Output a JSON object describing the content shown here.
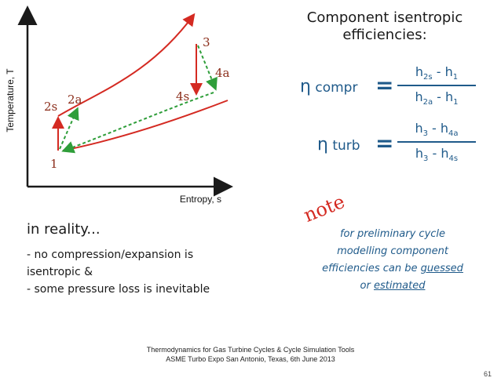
{
  "diagram": {
    "y_axis_label": "Temperature, T",
    "x_axis_label": "Entropy, s",
    "point_labels": [
      "1",
      "2s",
      "2a",
      "3",
      "4s",
      "4a"
    ],
    "colors": {
      "process": "#d42a22",
      "actual": "#2f9e3a",
      "axis": "#1a1a1a"
    }
  },
  "efficiencies": {
    "title_line1": "Component isentropic",
    "title_line2": "efficiencies:",
    "compr": {
      "symbol": "η",
      "label": "compr",
      "equals": "=",
      "num_a": "h",
      "num_a_sub": "2s",
      "num_op": " - ",
      "num_b": "h",
      "num_b_sub": "1",
      "den_a": "h",
      "den_a_sub": "2a",
      "den_op": " - ",
      "den_b": "h",
      "den_b_sub": "1"
    },
    "turb": {
      "symbol": "η",
      "label": "turb",
      "equals": "=",
      "num_a": "h",
      "num_a_sub": "3",
      "num_op": " - ",
      "num_b": "h",
      "num_b_sub": "4a",
      "den_a": "h",
      "den_a_sub": "3",
      "den_op": " - ",
      "den_b": "h",
      "den_b_sub": "4s"
    }
  },
  "reality": {
    "heading": "in reality...",
    "line1": "- no compression/expansion is",
    "line2": "isentropic &",
    "line3": "- some pressure loss is inevitable"
  },
  "note": {
    "tag": "note",
    "line1": "for preliminary cycle",
    "line2": "modelling component",
    "line3_pre": "efficiencies can be ",
    "line3_u": "guessed",
    "line4_pre": "or ",
    "line4_u": "estimated"
  },
  "footer": {
    "line1": "Thermodynamics for Gas Turbine Cycles & Cycle Simulation Tools",
    "line2": "ASME Turbo Expo San Antonio, Texas, 6th June 2013",
    "page_number": "61"
  }
}
